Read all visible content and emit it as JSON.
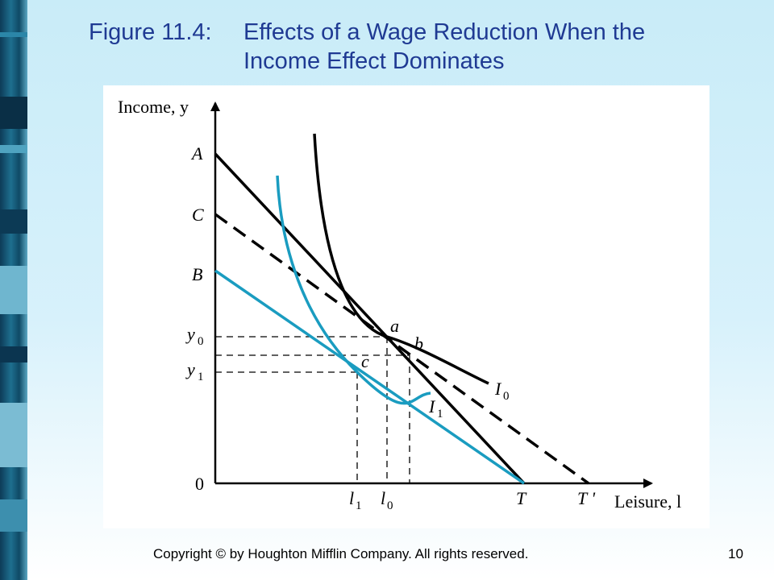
{
  "slide": {
    "title_number": "Figure 11.4:",
    "title_text": "Effects of a Wage Reduction When the Income Effect Dominates",
    "copyright": "Copyright © by Houghton Mifflin Company. All rights reserved.",
    "page_number": "10"
  },
  "figure": {
    "y_axis_label": "Income, y",
    "x_axis_label": "Leisure, l",
    "y_ticks": {
      "A": "A",
      "C": "C",
      "B": "B",
      "y0": "y",
      "y0_sub": "0",
      "y1": "y",
      "y1_sub": "1",
      "origin": "0"
    },
    "x_ticks": {
      "l1": "l",
      "l1_sub": "1",
      "l0": "l",
      "l0_sub": "0",
      "T": "T",
      "Tprime": "T '"
    },
    "point_labels": {
      "a": "a",
      "b": "b",
      "c": "c"
    },
    "curve_labels": {
      "I0": "I",
      "I0_sub": "0",
      "I1": "I",
      "I1_sub": "1"
    },
    "colors": {
      "black": "#000000",
      "blue": "#1a9cc0",
      "title": "#1f3a93"
    }
  }
}
